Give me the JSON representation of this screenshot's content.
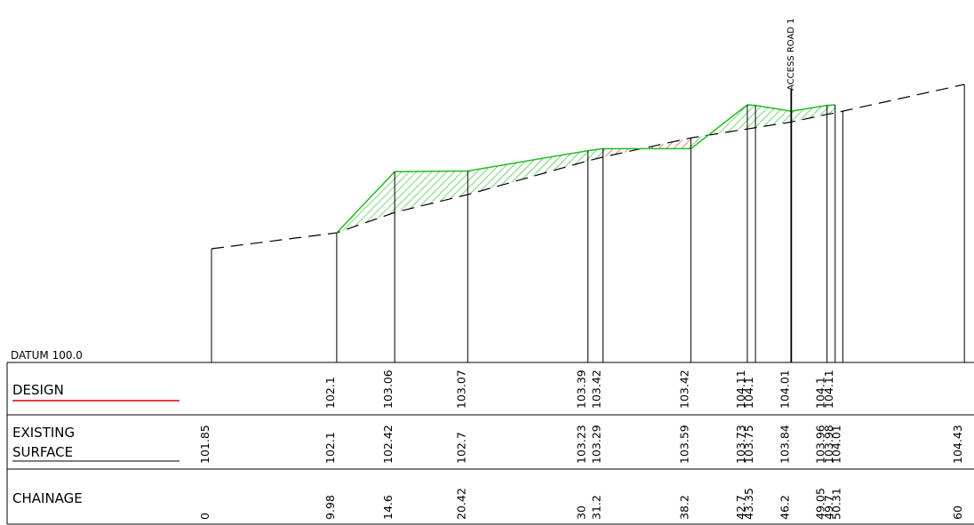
{
  "datum": "DATUM 100.0",
  "rows": {
    "design": "DESIGN",
    "existing": [
      "EXISTING",
      "SURFACE"
    ],
    "chainage": "CHAINAGE"
  },
  "annotation": "ACCESS ROAD 1",
  "stations": [
    {
      "chainage": 0,
      "existing": 101.85
    },
    {
      "chainage": 9.98,
      "existing": 102.1,
      "design": 102.1
    },
    {
      "chainage": 14.6,
      "existing": 102.42,
      "design": 103.06
    },
    {
      "chainage": 20.42,
      "existing": 102.7,
      "design": 103.07
    },
    {
      "chainage": 30,
      "existing": 103.23,
      "design": 103.39
    },
    {
      "chainage": 31.2,
      "existing": 103.29,
      "design": 103.42
    },
    {
      "chainage": 38.2,
      "existing": 103.59,
      "design": 103.42
    },
    {
      "chainage": 42.7,
      "existing": 103.73,
      "design": 104.11
    },
    {
      "chainage": 43.35,
      "existing": 103.75,
      "design": 104.1
    },
    {
      "chainage": 46.2,
      "existing": 103.84,
      "design": 104.01
    },
    {
      "chainage": 49.05,
      "existing": 103.96,
      "design": 104.1
    },
    {
      "chainage": 49.7,
      "existing": 103.98,
      "design": 104.11
    },
    {
      "chainage": 50.31,
      "existing": 104.01
    },
    {
      "chainage": 60,
      "existing": 104.43
    }
  ]
}
